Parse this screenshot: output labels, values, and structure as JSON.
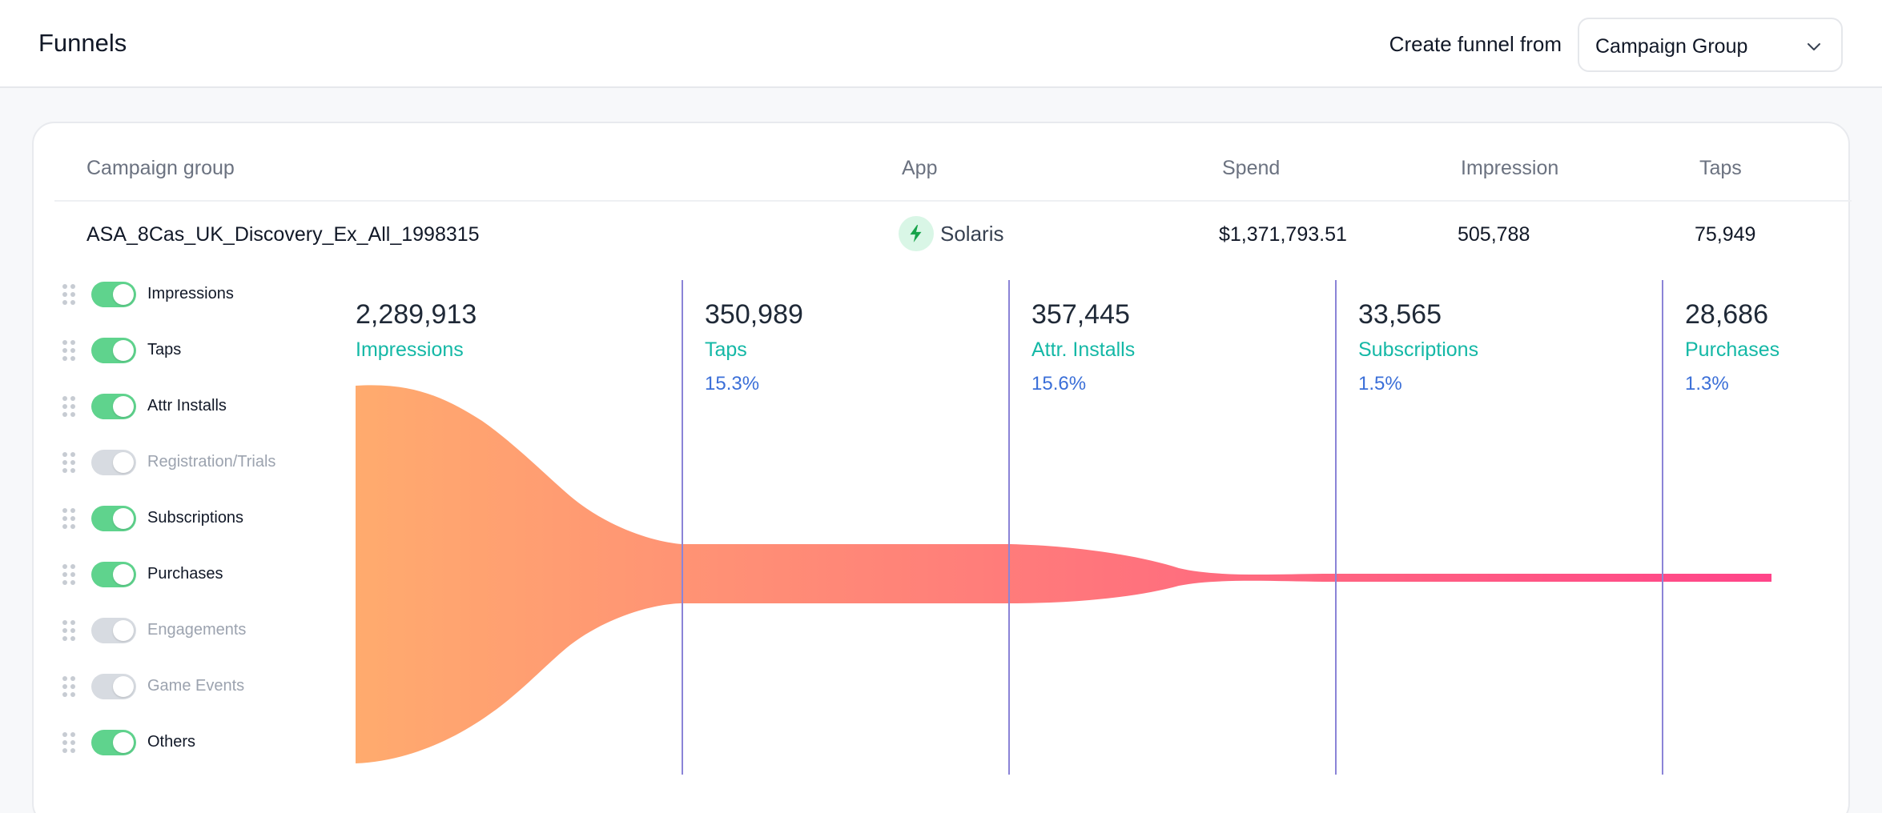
{
  "header": {
    "title": "Funnels",
    "create_label": "Create funnel from",
    "create_select_value": "Campaign Group"
  },
  "table": {
    "columns": [
      "Campaign group",
      "App",
      "Spend",
      "Impression",
      "Taps"
    ],
    "row": {
      "campaign_group": "ASA_8Cas_UK_Discovery_Ex_All_1998315",
      "app": "Solaris",
      "spend": "$1,371,793.51",
      "impression": "505,788",
      "taps": "75,949"
    }
  },
  "toggles": [
    {
      "label": "Impressions",
      "on": true
    },
    {
      "label": "Taps",
      "on": true
    },
    {
      "label": "Attr Installs",
      "on": true
    },
    {
      "label": "Registration/Trials",
      "on": false
    },
    {
      "label": "Subscriptions",
      "on": true
    },
    {
      "label": "Purchases",
      "on": true
    },
    {
      "label": "Engagements",
      "on": false
    },
    {
      "label": "Game Events",
      "on": false
    },
    {
      "label": "Others",
      "on": true
    }
  ],
  "funnel": {
    "stages": [
      {
        "value": "2,289,913",
        "label": "Impressions",
        "pct": ""
      },
      {
        "value": "350,989",
        "label": "Taps",
        "pct": "15.3%"
      },
      {
        "value": "357,445",
        "label": "Attr. Installs",
        "pct": "15.6%"
      },
      {
        "value": "33,565",
        "label": "Subscriptions",
        "pct": "1.5%"
      },
      {
        "value": "28,686",
        "label": "Purchases",
        "pct": "1.3%"
      }
    ],
    "colors": {
      "start": "#ffab6e",
      "end": "#ff4489",
      "divider": "#8b84d7",
      "toggle_on": "#5fd38d",
      "label": "#14b8a6",
      "pct": "#3b6fd8"
    }
  }
}
